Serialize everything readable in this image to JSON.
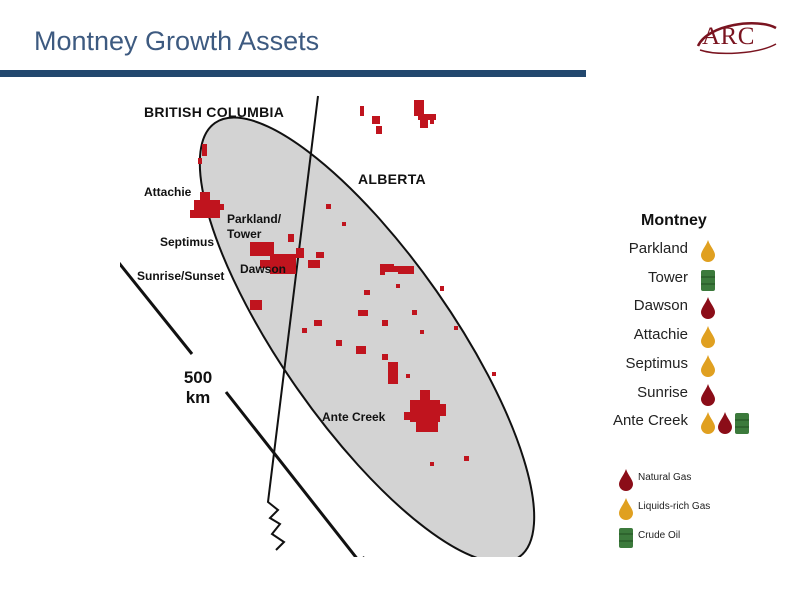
{
  "page": {
    "title": "Montney Growth Assets",
    "logo_text": "ARC"
  },
  "colors": {
    "title": "#3d5a80",
    "header_bar": "#22486e",
    "logo": "#7a1420",
    "natural_gas": "#8b0d18",
    "liquids_rich_gas": "#e0a020",
    "crude_oil": "#3c7a3c",
    "lands": "#c0141e",
    "ellipse_fill": "#d3d3d3"
  },
  "map": {
    "regions": {
      "british_columbia": "BRITISH COLUMBIA",
      "alberta": "ALBERTA"
    },
    "areas": {
      "attachie": "Attachie",
      "parkland_tower_1": "Parkland/",
      "parkland_tower_2": "Tower",
      "septimus": "Septimus",
      "sunrise_sunset": "Sunrise/Sunset",
      "dawson": "Dawson",
      "ante_creek": "Ante Creek"
    },
    "distance": {
      "value": "500",
      "unit": "km"
    }
  },
  "legend": {
    "title": "Montney",
    "items": [
      {
        "name": "Parkland",
        "icons": [
          "liquids"
        ]
      },
      {
        "name": "Tower",
        "icons": [
          "oil"
        ]
      },
      {
        "name": "Dawson",
        "icons": [
          "gas"
        ]
      },
      {
        "name": "Attachie",
        "icons": [
          "liquids"
        ]
      },
      {
        "name": "Septimus",
        "icons": [
          "liquids"
        ]
      },
      {
        "name": "Sunrise",
        "icons": [
          "gas"
        ]
      },
      {
        "name": "Ante Creek",
        "icons": [
          "liquids",
          "gas",
          "oil"
        ]
      }
    ]
  },
  "key": {
    "natural_gas": "Natural Gas",
    "liquids_rich_gas": "Liquids-rich Gas",
    "crude_oil": "Crude Oil"
  }
}
